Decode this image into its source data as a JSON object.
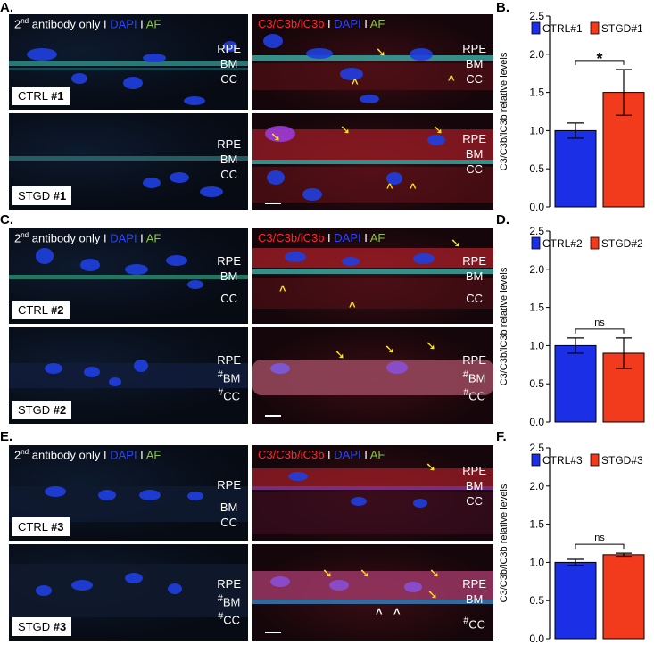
{
  "panels": {
    "A": "A.",
    "B": "B.",
    "C": "C.",
    "D": "D.",
    "E": "E.",
    "F": "F."
  },
  "header_left": {
    "pre": "2",
    "sup": "nd",
    "rest": " antibody only",
    "sep": " I ",
    "dapi": "DAPI",
    "af": "AF"
  },
  "header_right": {
    "c3": "C3/C3b/iC3b",
    "sep": " I ",
    "dapi": "DAPI",
    "af": "AF"
  },
  "tags": {
    "ctrl1_pre": "CTRL ",
    "ctrl1_num": "#1",
    "stgd1_pre": "STGD ",
    "stgd1_num": "#1",
    "ctrl2_pre": "CTRL ",
    "ctrl2_num": "#2",
    "stgd2_pre": "STGD ",
    "stgd2_num": "#2",
    "ctrl3_pre": "CTRL ",
    "ctrl3_num": "#3",
    "stgd3_pre": "STGD ",
    "stgd3_num": "#3"
  },
  "layers": {
    "rpe": "RPE",
    "bm": "BM",
    "cc": "CC",
    "hash": "#"
  },
  "marks": {
    "arrow": "➘",
    "caret": "^"
  },
  "colors": {
    "ctrl": "#1a2fe6",
    "stgd": "#f23b1c",
    "dapi": "#2a45ff",
    "af": "#8ac53a",
    "c3": "#ff2a2a"
  },
  "chart_data": [
    {
      "type": "bar",
      "categories": [
        "CTRL#1",
        "STGD#1"
      ],
      "values": [
        1.0,
        1.5
      ],
      "errors": [
        0.1,
        0.3
      ],
      "ylabel": "C3/C3b/iC3b relative levels",
      "ylim": [
        0,
        2.5
      ],
      "yticks": [
        "0.0",
        "0.5",
        "1.0",
        "1.5",
        "2.0",
        "2.5"
      ],
      "significance": "*",
      "legend": [
        "CTRL#1",
        "STGD#1"
      ]
    },
    {
      "type": "bar",
      "categories": [
        "CTRL#2",
        "STGD#2"
      ],
      "values": [
        1.0,
        0.9
      ],
      "errors": [
        0.1,
        0.2
      ],
      "ylabel": "C3/C3b/iC3b relative levels",
      "ylim": [
        0,
        2.5
      ],
      "yticks": [
        "0.0",
        "0.5",
        "1.0",
        "1.5",
        "2.0",
        "2.5"
      ],
      "significance": "ns",
      "legend": [
        "CTRL#2",
        "STGD#2"
      ]
    },
    {
      "type": "bar",
      "categories": [
        "CTRL#3",
        "STGD#3"
      ],
      "values": [
        1.0,
        1.1
      ],
      "errors": [
        0.04,
        0.02
      ],
      "ylabel": "C3/C3b/iC3b relative levels",
      "ylim": [
        0,
        2.5
      ],
      "yticks": [
        "0.0",
        "0.5",
        "1.0",
        "1.5",
        "2.0",
        "2.5"
      ],
      "significance": "ns",
      "legend": [
        "CTRL#3",
        "STGD#3"
      ]
    }
  ]
}
